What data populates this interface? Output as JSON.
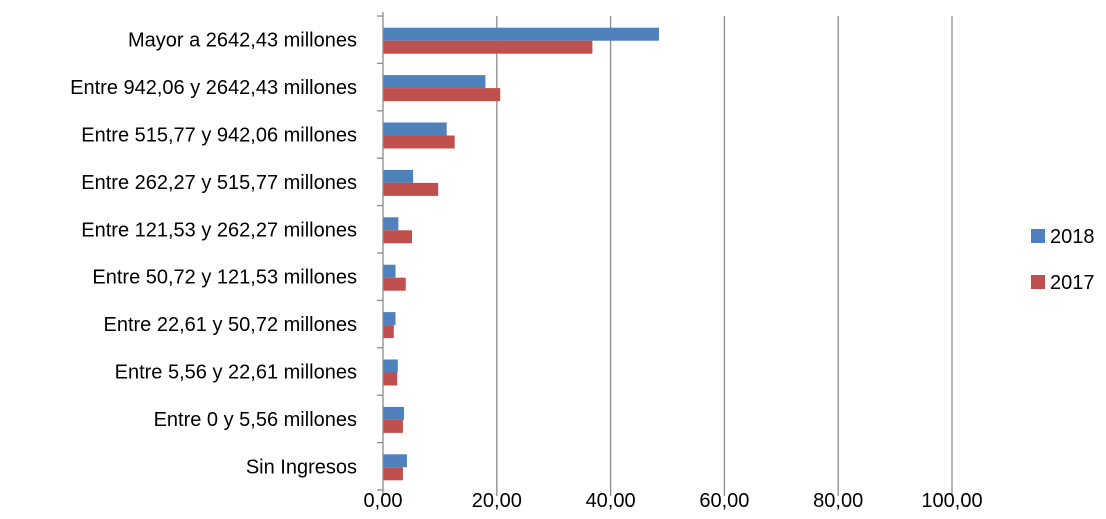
{
  "chart_data": {
    "type": "bar",
    "orientation": "horizontal",
    "title": "",
    "xlabel": "",
    "ylabel": "",
    "categories": [
      "Mayor a 2642,43 millones",
      "Entre 942,06 y 2642,43 millones",
      "Entre 515,77 y 942,06 millones",
      "Entre 262,27 y 515,77 millones",
      "Entre 121,53 y 262,27 millones",
      "Entre 50,72 y 121,53 millones",
      "Entre 22,61 y 50,72 millones",
      "Entre 5,56 y 22,61 millones",
      "Entre 0 y 5,56 millones",
      "Sin Ingresos"
    ],
    "series": [
      {
        "name": "2018",
        "color": "#4F81BD",
        "values": [
          48.5,
          18.0,
          11.2,
          5.3,
          2.7,
          2.2,
          2.2,
          2.6,
          3.7,
          4.2
        ]
      },
      {
        "name": "2017",
        "color": "#C0504D",
        "values": [
          36.8,
          20.6,
          12.6,
          9.7,
          5.1,
          4.0,
          1.9,
          2.5,
          3.5,
          3.5
        ]
      }
    ],
    "xlim": [
      0,
      100
    ],
    "xticks": [
      "0,00",
      "20,00",
      "40,00",
      "60,00",
      "80,00",
      "100,00"
    ],
    "grid": "vertical",
    "legend_position": "right"
  }
}
